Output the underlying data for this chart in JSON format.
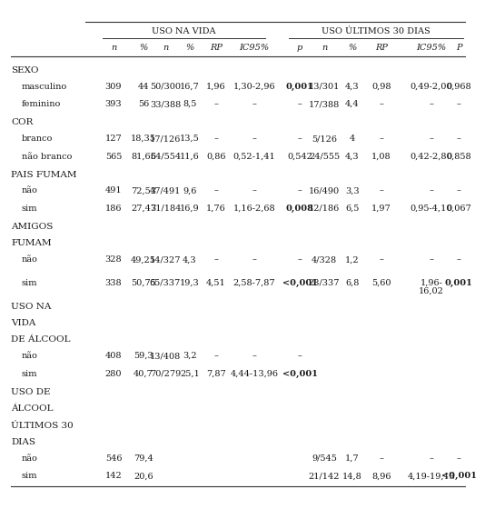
{
  "header1": "USO NA VIDA",
  "header2": "USO ÚLTIMOS 30 DIAS",
  "col_headers": [
    "n",
    "%",
    "n",
    "%",
    "RP",
    "IC95%",
    "p",
    "n",
    "%",
    "RP",
    "IC95%",
    "P"
  ],
  "rows": [
    {
      "label": "SEXO",
      "is_section": true,
      "cols": [
        "",
        "",
        "",
        "",
        "",
        "",
        "",
        "",
        "",
        "",
        "",
        ""
      ]
    },
    {
      "label": "masculino",
      "is_section": false,
      "cols": [
        "309",
        "44",
        "50/300",
        "16,7",
        "1,96",
        "1,30-2,96",
        "0,001",
        "13/301",
        "4,3",
        "0,98",
        "0,49-2,00",
        "0,968"
      ],
      "bold_cols": [
        6
      ]
    },
    {
      "label": "feminino",
      "is_section": false,
      "cols": [
        "393",
        "56",
        "33/388",
        "8,5",
        "–",
        "–",
        "–",
        "17/388",
        "4,4",
        "–",
        "–",
        "–"
      ]
    },
    {
      "label": "COR",
      "is_section": true,
      "cols": [
        "",
        "",
        "",
        "",
        "",
        "",
        "",
        "",
        "",
        "",
        "",
        ""
      ]
    },
    {
      "label": "branco",
      "is_section": false,
      "cols": [
        "127",
        "18,35",
        "17/126",
        "13,5",
        "–",
        "–",
        "–",
        "5/126",
        "4",
        "–",
        "–",
        "–"
      ]
    },
    {
      "label": "não branco",
      "is_section": false,
      "cols": [
        "565",
        "81,65",
        "64/554",
        "11,6",
        "0,86",
        "0,52-1,41",
        "0,542",
        "24/555",
        "4,3",
        "1,08",
        "0,42-2,80",
        "0,858"
      ]
    },
    {
      "label": "PAIS FUMAM",
      "is_section": true,
      "cols": [
        "",
        "",
        "",
        "",
        "",
        "",
        "",
        "",
        "",
        "",
        "",
        ""
      ]
    },
    {
      "label": "não",
      "is_section": false,
      "cols": [
        "491",
        "72,53",
        "47/491",
        "9,6",
        "–",
        "–",
        "–",
        "16/490",
        "3,3",
        "–",
        "–",
        "–"
      ]
    },
    {
      "label": "sim",
      "is_section": false,
      "cols": [
        "186",
        "27,47",
        "31/184",
        "16,9",
        "1,76",
        "1,16-2,68",
        "0,008",
        "12/186",
        "6,5",
        "1,97",
        "0,95-4,10",
        "0,067"
      ],
      "bold_cols": [
        6
      ]
    },
    {
      "label": "AMIGOS",
      "is_section": true,
      "cols": [
        "",
        "",
        "",
        "",
        "",
        "",
        "",
        "",
        "",
        "",
        "",
        ""
      ]
    },
    {
      "label": "FUMAM",
      "is_section": true,
      "cols": [
        "",
        "",
        "",
        "",
        "",
        "",
        "",
        "",
        "",
        "",
        "",
        ""
      ]
    },
    {
      "label": "não",
      "is_section": false,
      "cols": [
        "328",
        "49,25",
        "14/327",
        "4,3",
        "–",
        "–",
        "–",
        "4/328",
        "1,2",
        "–",
        "–",
        "–"
      ]
    },
    {
      "label": "sim",
      "is_section": false,
      "cols": [
        "338",
        "50,75",
        "65/337",
        "19,3",
        "4,51",
        "2,58-7,87",
        "<0,001",
        "23/337",
        "6,8",
        "5,60",
        "1,96-",
        "0,001"
      ],
      "bold_cols": [
        6,
        11
      ],
      "extra_line": {
        "col_idx": 10,
        "text": "16,02"
      }
    },
    {
      "label": "USO NA",
      "is_section": true,
      "cols": [
        "",
        "",
        "",
        "",
        "",
        "",
        "",
        "",
        "",
        "",
        "",
        ""
      ]
    },
    {
      "label": "VIDA",
      "is_section": true,
      "cols": [
        "",
        "",
        "",
        "",
        "",
        "",
        "",
        "",
        "",
        "",
        "",
        ""
      ]
    },
    {
      "label": "DE ÁLCOOL",
      "is_section": true,
      "cols": [
        "",
        "",
        "",
        "",
        "",
        "",
        "",
        "",
        "",
        "",
        "",
        ""
      ]
    },
    {
      "label": "não",
      "is_section": false,
      "cols": [
        "408",
        "59,3",
        "13/408",
        "3,2",
        "–",
        "–",
        "–",
        "",
        "",
        "",
        "",
        ""
      ]
    },
    {
      "label": "sim",
      "is_section": false,
      "cols": [
        "280",
        "40,7",
        "70/279",
        "25,1",
        "7,87",
        "4,44-13,96",
        "<0,001",
        "",
        "",
        "",
        "",
        ""
      ],
      "bold_cols": [
        6
      ]
    },
    {
      "label": "USO DE",
      "is_section": true,
      "cols": [
        "",
        "",
        "",
        "",
        "",
        "",
        "",
        "",
        "",
        "",
        "",
        ""
      ]
    },
    {
      "label": "ÁLCOOL",
      "is_section": true,
      "cols": [
        "",
        "",
        "",
        "",
        "",
        "",
        "",
        "",
        "",
        "",
        "",
        ""
      ]
    },
    {
      "label": "ÚLTIMOS 30",
      "is_section": true,
      "cols": [
        "",
        "",
        "",
        "",
        "",
        "",
        "",
        "",
        "",
        "",
        "",
        ""
      ]
    },
    {
      "label": "DIAS",
      "is_section": true,
      "cols": [
        "",
        "",
        "",
        "",
        "",
        "",
        "",
        "",
        "",
        "",
        "",
        ""
      ]
    },
    {
      "label": "não",
      "is_section": false,
      "cols": [
        "546",
        "79,4",
        "",
        "",
        "",
        "",
        "",
        "9/545",
        "1,7",
        "–",
        "–",
        "–"
      ]
    },
    {
      "label": "sim",
      "is_section": false,
      "cols": [
        "142",
        "20,6",
        "",
        "",
        "",
        "",
        "",
        "21/142",
        "14,8",
        "8,96",
        "4,19-19,13",
        "<0,001"
      ],
      "bold_cols": [
        11
      ]
    }
  ],
  "bg_color": "#ffffff",
  "text_color": "#1a1a1a",
  "line_color": "#333333"
}
